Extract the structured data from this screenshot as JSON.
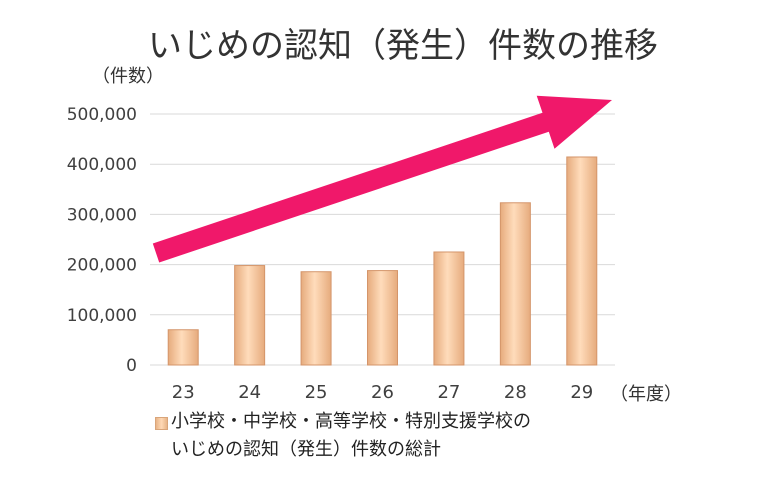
{
  "chart_data": {
    "type": "bar",
    "title": "いじめの認知（発生）件数の推移",
    "ylabel": "（件数）",
    "xunit": "（年度）",
    "categories": [
      "23",
      "24",
      "25",
      "26",
      "27",
      "28",
      "29"
    ],
    "series": [
      {
        "name_lines": [
          "小学校・中学校・高等学校・特別支援学校の",
          "いじめの認知（発生）件数の総計"
        ],
        "values": [
          70231,
          198109,
          185803,
          188072,
          225132,
          323143,
          414378
        ]
      }
    ],
    "ylim": [
      0,
      500000
    ],
    "yticks": [
      "0",
      "100,000",
      "200,000",
      "300,000",
      "400,000",
      "500,000"
    ],
    "grid": true,
    "legend_position": "bottom-left",
    "colors": {
      "bar_light": "#ffdcbb",
      "bar_dark": "#e6ab7d",
      "bar_edge": "#d4956a",
      "arrow": "#f0186a",
      "grid": "#d9d9d9",
      "axis_text": "#404040"
    },
    "annotations": [
      {
        "type": "trend-arrow",
        "description_icon": "upward-trend-arrow"
      }
    ]
  }
}
